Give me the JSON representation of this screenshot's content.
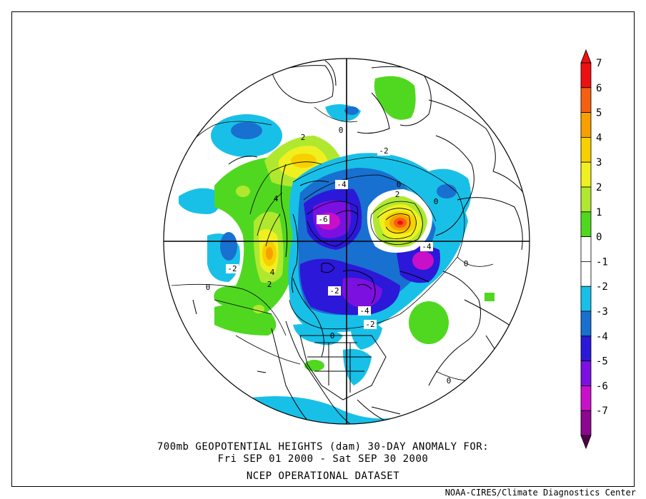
{
  "title": {
    "line1": "700mb GEOPOTENTIAL HEIGHTS (dam)   30-DAY ANOMALY FOR:",
    "line2": "Fri SEP 01 2000 - Sat SEP 30 2000",
    "line3": "NCEP OPERATIONAL DATASET"
  },
  "credit": "NOAA-CIRES/Climate Diagnostics Center",
  "colorbar": {
    "levels": [
      {
        "label": "7",
        "color": "#ee1010"
      },
      {
        "label": "6",
        "color": "#f56010"
      },
      {
        "label": "5",
        "color": "#f8a000"
      },
      {
        "label": "4",
        "color": "#f8d000"
      },
      {
        "label": "3",
        "color": "#f0f020"
      },
      {
        "label": "2",
        "color": "#b0e830"
      },
      {
        "label": "1",
        "color": "#50d820"
      },
      {
        "label": "0",
        "color": "#ffffff"
      },
      {
        "label": "-1",
        "color": "#ffffff"
      },
      {
        "label": "-2",
        "color": "#18c0e8"
      },
      {
        "label": "-3",
        "color": "#1870d0"
      },
      {
        "label": "-4",
        "color": "#2c18d8"
      },
      {
        "label": "-5",
        "color": "#7c10e0"
      },
      {
        "label": "-6",
        "color": "#c810c8"
      },
      {
        "label": "-7",
        "color": "#8c0890"
      }
    ],
    "top_arrow_color": "#ee1010",
    "bottom_arrow_color": "#500048"
  },
  "map_labels": [
    {
      "text": "2",
      "kind": "plain"
    },
    {
      "text": "0",
      "kind": "plain"
    },
    {
      "text": "-2",
      "kind": "box"
    },
    {
      "text": "0",
      "kind": "plain"
    },
    {
      "text": "-4",
      "kind": "box"
    },
    {
      "text": "2",
      "kind": "plain"
    },
    {
      "text": "4",
      "kind": "plain"
    },
    {
      "text": "-6",
      "kind": "box"
    },
    {
      "text": "-4",
      "kind": "box"
    },
    {
      "text": "0",
      "kind": "plain"
    },
    {
      "text": "4",
      "kind": "plain"
    },
    {
      "text": "2",
      "kind": "plain"
    },
    {
      "text": "-2",
      "kind": "box"
    },
    {
      "text": "0",
      "kind": "plain"
    },
    {
      "text": "-2",
      "kind": "box"
    },
    {
      "text": "-4",
      "kind": "box"
    },
    {
      "text": "-2",
      "kind": "box"
    },
    {
      "text": "0",
      "kind": "plain"
    },
    {
      "text": "0",
      "kind": "plain"
    },
    {
      "text": "0",
      "kind": "plain"
    }
  ]
}
